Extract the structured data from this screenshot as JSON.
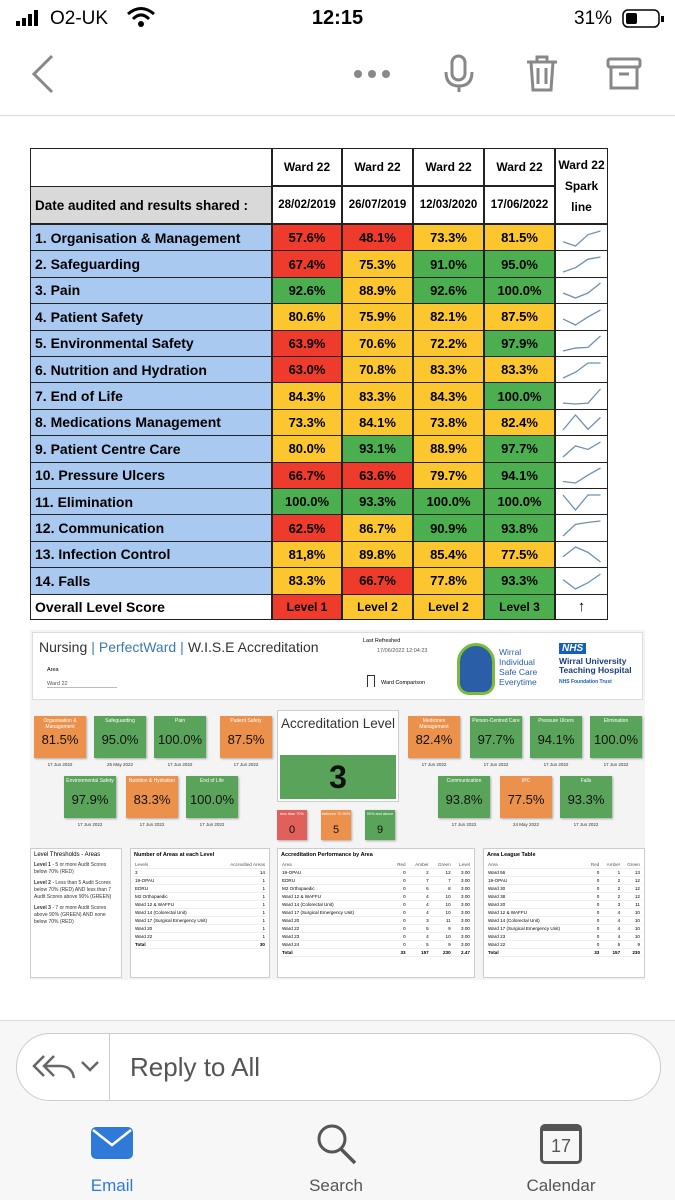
{
  "status": {
    "carrier": "O2-UK",
    "time": "12:15",
    "battery": "31%"
  },
  "table": {
    "header": {
      "wards": [
        "Ward 22",
        "Ward 22",
        "Ward 22",
        "Ward 22"
      ],
      "spark": "Ward 22 Spark line"
    },
    "date_label": "Date audited and results shared  :",
    "dates": [
      "28/02/2019",
      "26/07/2019",
      "12/03/2020",
      "17/06/2022"
    ],
    "palette": {
      "red": "#ef3b2c",
      "amber": "#fcc62e",
      "green": "#4caf4f"
    },
    "rows": [
      {
        "label": "1.   Organisation & Management",
        "values": [
          "57.6%",
          "48.1%",
          "73.3%",
          "81.5%"
        ],
        "colors": [
          "red",
          "red",
          "amber",
          "amber"
        ]
      },
      {
        "label": "2.   Safeguarding",
        "values": [
          "67.4%",
          "75.3%",
          "91.0%",
          "95.0%"
        ],
        "colors": [
          "red",
          "amber",
          "green",
          "green"
        ]
      },
      {
        "label": "3.   Pain",
        "values": [
          "92.6%",
          "88.9%",
          "92.6%",
          "100.0%"
        ],
        "colors": [
          "green",
          "amber",
          "green",
          "green"
        ]
      },
      {
        "label": "4.   Patient Safety",
        "values": [
          "80.6%",
          "75.9%",
          "82.1%",
          "87.5%"
        ],
        "colors": [
          "amber",
          "amber",
          "amber",
          "amber"
        ]
      },
      {
        "label": "5.   Environmental Safety",
        "values": [
          "63.9%",
          "70.6%",
          "72.2%",
          "97.9%"
        ],
        "colors": [
          "red",
          "amber",
          "amber",
          "green"
        ]
      },
      {
        "label": "6.   Nutrition and Hydration",
        "values": [
          "63.0%",
          "70.8%",
          "83.3%",
          "83.3%"
        ],
        "colors": [
          "red",
          "amber",
          "amber",
          "amber"
        ]
      },
      {
        "label": "7.   End of Life",
        "values": [
          "84.3%",
          "83.3%",
          "84.3%",
          "100.0%"
        ],
        "colors": [
          "amber",
          "amber",
          "amber",
          "green"
        ]
      },
      {
        "label": "8.   Medications Management",
        "values": [
          "73.3%",
          "84.1%",
          "73.8%",
          "82.4%"
        ],
        "colors": [
          "amber",
          "amber",
          "amber",
          "amber"
        ]
      },
      {
        "label": "9.   Patient Centre Care",
        "values": [
          "80.0%",
          "93.1%",
          "88.9%",
          "97.7%"
        ],
        "colors": [
          "amber",
          "green",
          "amber",
          "green"
        ]
      },
      {
        "label": "10. Pressure Ulcers",
        "values": [
          "66.7%",
          "63.6%",
          "79.7%",
          "94.1%"
        ],
        "colors": [
          "red",
          "red",
          "amber",
          "green"
        ]
      },
      {
        "label": "11. Elimination",
        "values": [
          "100.0%",
          "93.3%",
          "100.0%",
          "100.0%"
        ],
        "colors": [
          "green",
          "green",
          "green",
          "green"
        ]
      },
      {
        "label": "12. Communication",
        "values": [
          "62.5%",
          "86.7%",
          "90.9%",
          "93.8%"
        ],
        "colors": [
          "red",
          "amber",
          "green",
          "green"
        ]
      },
      {
        "label": "13. Infection Control",
        "values": [
          "81,8%",
          "89.8%",
          "85.4%",
          "77.5%"
        ],
        "colors": [
          "amber",
          "amber",
          "amber",
          "amber"
        ]
      },
      {
        "label": "14. Falls",
        "values": [
          "83.3%",
          "66.7%",
          "77.8%",
          "93.3%"
        ],
        "colors": [
          "amber",
          "red",
          "amber",
          "green"
        ]
      }
    ],
    "overall": {
      "label": "Overall Level Score",
      "levels": [
        "Level 1",
        "Level 2",
        "Level 2",
        "Level 3"
      ],
      "colors": [
        "red",
        "amber",
        "amber",
        "green"
      ],
      "arrow": "↑"
    }
  },
  "dash": {
    "title": [
      "Nursing",
      "PerfectWard",
      "W.I.S.E Accreditation"
    ],
    "last_refreshed_label": "Last Refreshed",
    "last_refreshed": "17/06/2022 12:04:23",
    "area_label": "Area",
    "area_value": "Ward 22",
    "ward_comparison": "Ward Comparison",
    "wise": [
      "Wirral",
      "Individual",
      "Safe Care",
      "Everytime"
    ],
    "nhs": "NHS",
    "trust": "Wirral University Teaching Hospital",
    "trust_sub": "NHS Foundation Trust",
    "palette": {
      "red": "#e0605c",
      "amber": "#ec914c",
      "green": "#5aa35a"
    },
    "left_top": [
      {
        "label": "Organisation & Management",
        "value": "81.5%",
        "date": "17 Jun 2022",
        "color": "amber"
      },
      {
        "label": "Safeguarding",
        "value": "95.0%",
        "date": "25 May 2022",
        "color": "green"
      },
      {
        "label": "Pain",
        "value": "100.0%",
        "date": "17 Jun 2022",
        "color": "green"
      },
      {
        "label": "Patient Safety",
        "value": "87.5%",
        "date": "17 Jun 2022",
        "color": "amber"
      }
    ],
    "left_bottom": [
      {
        "label": "Environmental Safety",
        "value": "97.9%",
        "date": "17 Jun 2022",
        "color": "green"
      },
      {
        "label": "Nutrition & Hydration",
        "value": "83.3%",
        "date": "17 Jun 2022",
        "color": "amber"
      },
      {
        "label": "End of Life",
        "value": "100.0%",
        "date": "17 Jun 2022",
        "color": "green"
      }
    ],
    "right_top": [
      {
        "label": "Medicines Management",
        "value": "82.4%",
        "date": "17 Jun 2022",
        "color": "amber"
      },
      {
        "label": "Person-Centred Care",
        "value": "97.7%",
        "date": "17 Jun 2022",
        "color": "green"
      },
      {
        "label": "Pressure Ulcers",
        "value": "94.1%",
        "date": "17 Jun 2022",
        "color": "green"
      },
      {
        "label": "Elimination",
        "value": "100.0%",
        "date": "17 Jun 2022",
        "color": "green"
      }
    ],
    "right_bottom": [
      {
        "label": "Communication",
        "value": "93.8%",
        "date": "17 Jun 2022",
        "color": "green"
      },
      {
        "label": "IPC",
        "value": "77.5%",
        "date": "24 May 2022",
        "color": "amber"
      },
      {
        "label": "Falls",
        "value": "93.3%",
        "date": "17 Jun 2022",
        "color": "green"
      }
    ],
    "level_title": "Accreditation Level",
    "level": "3",
    "counts": [
      {
        "label": "less than 70%",
        "value": "0",
        "color": "red"
      },
      {
        "label": "between 70-90%",
        "value": "5",
        "color": "amber"
      },
      {
        "label": "90% and above",
        "value": "9",
        "color": "green"
      }
    ],
    "thresholds": {
      "title": "Level Thresholds - Areas",
      "lines": [
        {
          "head": "Level 1",
          "text": " - 5 or more Audit Scores below 70% (RED)"
        },
        {
          "head": "Level 2",
          "text": " - Less than 5 Audit Scores below 70% (RED) AND less than 7 Audit Scores above 90% (GREEN)"
        },
        {
          "head": "Level 3",
          "text": " - 7 or more Audit Scores above 90% (GREEN) AND none below 70% (RED)"
        }
      ]
    },
    "areas": {
      "title": "Number of Areas at each Level",
      "headers": [
        "Levels",
        "Accredited Areas"
      ],
      "rows": [
        [
          "3",
          "14"
        ],
        [
          "19-OPAU",
          "1"
        ],
        [
          "EDRU",
          "1"
        ],
        [
          "M2 Orthopaedic",
          "1"
        ],
        [
          "Ward 12 & WAFFU",
          "1"
        ],
        [
          "Ward 14 (Colorectal Unit)",
          "1"
        ],
        [
          "Ward 17 (Surgical Emergency Unit)",
          "1"
        ],
        [
          "Ward 20",
          "1"
        ],
        [
          "Ward 22",
          "1"
        ]
      ],
      "total": [
        "Total",
        "30"
      ]
    },
    "performance": {
      "title": "Accreditation Performance by Area",
      "headers": [
        "Area",
        "Red",
        "Amber",
        "Green",
        "Level"
      ],
      "rows": [
        [
          "19-OPAU",
          "0",
          "2",
          "12",
          "3.00"
        ],
        [
          "EDRU",
          "0",
          "7",
          "7",
          "3.00"
        ],
        [
          "M2 Orthopaedic",
          "0",
          "6",
          "8",
          "3.00"
        ],
        [
          "Ward 12 & WAFFU",
          "0",
          "4",
          "10",
          "3.00"
        ],
        [
          "Ward 14 (Colorectal Unit)",
          "0",
          "4",
          "10",
          "3.00"
        ],
        [
          "Ward 17 (Surgical Emergency Unit)",
          "0",
          "4",
          "10",
          "3.00"
        ],
        [
          "Ward 20",
          "0",
          "3",
          "11",
          "3.00"
        ],
        [
          "Ward 22",
          "0",
          "5",
          "9",
          "3.00"
        ],
        [
          "Ward 23",
          "0",
          "4",
          "10",
          "3.00"
        ],
        [
          "Ward 24",
          "0",
          "5",
          "9",
          "3.00"
        ]
      ],
      "total": [
        "Total",
        "33",
        "157",
        "230",
        "2.47"
      ]
    },
    "league": {
      "title": "Area League Table",
      "headers": [
        "Area",
        "Red",
        "Amber",
        "Green"
      ],
      "rows": [
        [
          "Ward 56",
          "0",
          "1",
          "13"
        ],
        [
          "19-OPAU",
          "0",
          "2",
          "12"
        ],
        [
          "Ward 30",
          "0",
          "2",
          "12"
        ],
        [
          "Ward 38",
          "0",
          "2",
          "12"
        ],
        [
          "Ward 20",
          "0",
          "3",
          "11"
        ],
        [
          "Ward 12 & WAFFU",
          "0",
          "4",
          "10"
        ],
        [
          "Ward 14 (Colorectal Unit)",
          "0",
          "4",
          "10"
        ],
        [
          "Ward 17 (Surgical Emergency Unit)",
          "0",
          "4",
          "10"
        ],
        [
          "Ward 23",
          "0",
          "4",
          "10"
        ],
        [
          "Ward 22",
          "0",
          "5",
          "9"
        ]
      ],
      "total": [
        "Total",
        "33",
        "157",
        "230"
      ]
    }
  },
  "reply": {
    "placeholder": "Reply to All"
  },
  "tabs": {
    "email": "Email",
    "search": "Search",
    "calendar": "Calendar",
    "calendar_day": "17"
  }
}
